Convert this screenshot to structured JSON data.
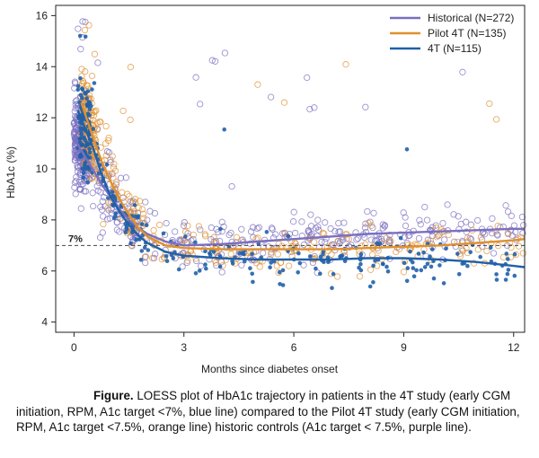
{
  "chart_data": {
    "type": "scatter",
    "title": "",
    "xlabel": "Months since diabetes onset",
    "ylabel": "HbA1c (%)",
    "xlim": [
      -0.5,
      12.3
    ],
    "ylim": [
      3.6,
      16.4
    ],
    "x_ticks": [
      0,
      3,
      6,
      9,
      12
    ],
    "y_ticks": [
      4,
      6,
      8,
      10,
      12,
      14,
      16
    ],
    "grid": false,
    "legend_position": "top-right",
    "reference_line": {
      "y": 7,
      "label": "7%",
      "style": "dashed"
    },
    "series": [
      {
        "name": "Historical (N=272)",
        "color": "#7a6fbf",
        "marker": "open-circle",
        "loess": [
          [
            0,
            11.2
          ],
          [
            0.25,
            10.6
          ],
          [
            0.5,
            10.0
          ],
          [
            0.75,
            9.4
          ],
          [
            1.0,
            8.9
          ],
          [
            1.25,
            8.4
          ],
          [
            1.5,
            8.0
          ],
          [
            1.75,
            7.7
          ],
          [
            2.0,
            7.45
          ],
          [
            2.5,
            7.15
          ],
          [
            3.0,
            7.0
          ],
          [
            4.0,
            7.05
          ],
          [
            5.0,
            7.15
          ],
          [
            6.0,
            7.25
          ],
          [
            7.0,
            7.35
          ],
          [
            8.0,
            7.45
          ],
          [
            9.0,
            7.5
          ],
          [
            10.0,
            7.55
          ],
          [
            11.0,
            7.6
          ],
          [
            12.0,
            7.65
          ],
          [
            12.3,
            7.65
          ]
        ]
      },
      {
        "name": "Pilot 4T (N=135)",
        "color": "#e0902f",
        "marker": "open-circle",
        "loess": [
          [
            0.2,
            12.6
          ],
          [
            0.5,
            11.3
          ],
          [
            0.75,
            10.3
          ],
          [
            1.0,
            9.5
          ],
          [
            1.25,
            8.8
          ],
          [
            1.5,
            8.2
          ],
          [
            1.75,
            7.7
          ],
          [
            2.0,
            7.35
          ],
          [
            2.5,
            7.0
          ],
          [
            3.0,
            6.9
          ],
          [
            4.0,
            6.85
          ],
          [
            5.0,
            6.85
          ],
          [
            6.0,
            6.85
          ],
          [
            7.0,
            6.85
          ],
          [
            8.0,
            6.9
          ],
          [
            9.0,
            6.95
          ],
          [
            10.0,
            7.0
          ],
          [
            11.0,
            7.1
          ],
          [
            12.0,
            7.2
          ],
          [
            12.3,
            7.25
          ]
        ]
      },
      {
        "name": "4T (N=115)",
        "color": "#2060a8",
        "marker": "filled-circle",
        "loess": [
          [
            0.1,
            12.3
          ],
          [
            0.5,
            10.9
          ],
          [
            0.75,
            9.8
          ],
          [
            1.0,
            8.9
          ],
          [
            1.25,
            8.3
          ],
          [
            1.5,
            7.8
          ],
          [
            1.75,
            7.4
          ],
          [
            2.0,
            7.1
          ],
          [
            2.5,
            6.75
          ],
          [
            3.0,
            6.6
          ],
          [
            4.0,
            6.5
          ],
          [
            5.0,
            6.45
          ],
          [
            6.0,
            6.45
          ],
          [
            7.0,
            6.45
          ],
          [
            8.0,
            6.5
          ],
          [
            9.0,
            6.5
          ],
          [
            10.0,
            6.45
          ],
          [
            11.0,
            6.35
          ],
          [
            12.0,
            6.2
          ],
          [
            12.3,
            6.15
          ]
        ]
      }
    ]
  },
  "caption": {
    "label": "Figure.",
    "text": " LOESS plot of HbA1c trajectory in patients in the 4T study (early CGM initiation, RPM, A1c target <7%, blue line) compared to the Pilot 4T study (early CGM initiation, RPM, A1c target <7.5%, orange line) historic controls (A1c target < 7.5%, purple line)."
  }
}
